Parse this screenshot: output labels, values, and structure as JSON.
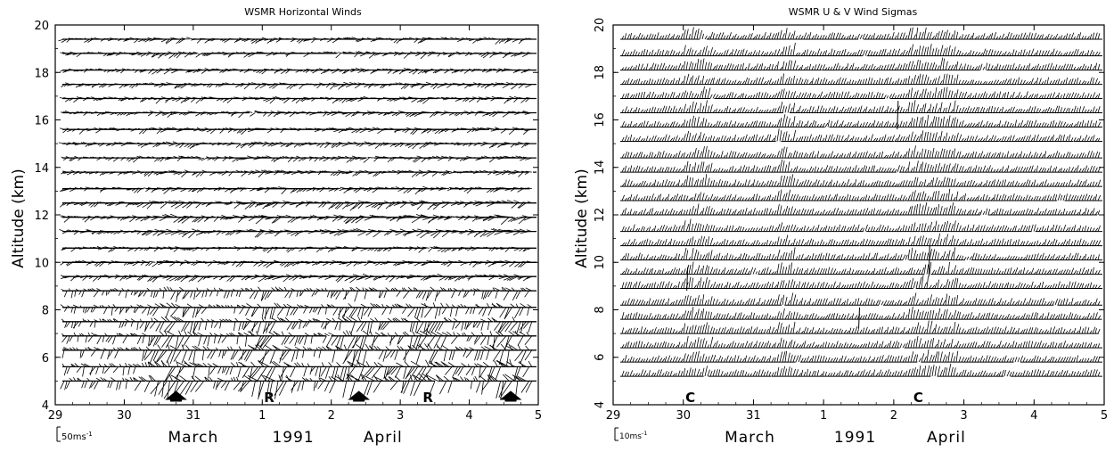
{
  "chart_data": [
    {
      "type": "wind-barb-timeseries",
      "title": "WSMR Horizontal Winds",
      "ylabel": "Altitude (km)",
      "ylim": [
        4,
        20
      ],
      "yticks": [
        4,
        6,
        8,
        10,
        12,
        14,
        16,
        18,
        20
      ],
      "xlim": [
        29,
        36
      ],
      "x_ticks": [
        {
          "x": 29,
          "label": "29"
        },
        {
          "x": 30,
          "label": "30"
        },
        {
          "x": 31,
          "label": "31"
        },
        {
          "x": 32,
          "label": "1"
        },
        {
          "x": 33,
          "label": "2"
        },
        {
          "x": 34,
          "label": "3"
        },
        {
          "x": 35,
          "label": "4"
        },
        {
          "x": 36,
          "label": "5"
        }
      ],
      "month_labels": [
        {
          "x": 31.0,
          "label": "March"
        },
        {
          "x": 32.45,
          "label": "1991"
        },
        {
          "x": 33.75,
          "label": "April"
        }
      ],
      "scale_label": "50ms",
      "scale_exp": "-1",
      "profile_altitudes": [
        5.0,
        5.6,
        6.3,
        6.9,
        7.5,
        8.1,
        8.8,
        9.4,
        10.0,
        10.6,
        11.3,
        11.9,
        12.5,
        13.1,
        13.8,
        14.4,
        15.0,
        15.6,
        16.3,
        16.9,
        17.5,
        18.1,
        18.8,
        19.4
      ],
      "events": [
        {
          "x": 30.75,
          "label": "",
          "symbol": "cloud"
        },
        {
          "x": 32.1,
          "label": "R",
          "symbol": "text"
        },
        {
          "x": 33.4,
          "label": "",
          "symbol": "cloud"
        },
        {
          "x": 34.4,
          "label": "R",
          "symbol": "text"
        },
        {
          "x": 35.6,
          "label": "",
          "symbol": "cloud"
        }
      ]
    },
    {
      "type": "wind-barb-timeseries",
      "title": "WSMR U & V Wind Sigmas",
      "ylabel": "Altitude (km)",
      "ylim": [
        4,
        20
      ],
      "yticks": [
        4,
        6,
        8,
        10,
        12,
        14,
        16,
        18,
        20
      ],
      "xlim": [
        29,
        36
      ],
      "x_ticks": [
        {
          "x": 29,
          "label": "29"
        },
        {
          "x": 30,
          "label": "30"
        },
        {
          "x": 31,
          "label": "31"
        },
        {
          "x": 32,
          "label": "1"
        },
        {
          "x": 33,
          "label": "2"
        },
        {
          "x": 34,
          "label": "3"
        },
        {
          "x": 35,
          "label": "4"
        },
        {
          "x": 36,
          "label": "5"
        }
      ],
      "month_labels": [
        {
          "x": 30.95,
          "label": "March"
        },
        {
          "x": 32.45,
          "label": "1991"
        },
        {
          "x": 33.75,
          "label": "April"
        }
      ],
      "scale_label": "10ms",
      "scale_exp": "-1",
      "profile_altitudes": [
        5.2,
        5.8,
        6.4,
        7.0,
        7.6,
        8.2,
        8.9,
        9.5,
        10.1,
        10.7,
        11.3,
        12.0,
        12.6,
        13.2,
        13.8,
        14.4,
        15.1,
        15.7,
        16.3,
        16.9,
        17.5,
        18.1,
        18.7,
        19.4
      ],
      "events": [
        {
          "x": 30.1,
          "label": "C",
          "symbol": "text"
        },
        {
          "x": 33.35,
          "label": "C",
          "symbol": "text"
        }
      ]
    }
  ]
}
